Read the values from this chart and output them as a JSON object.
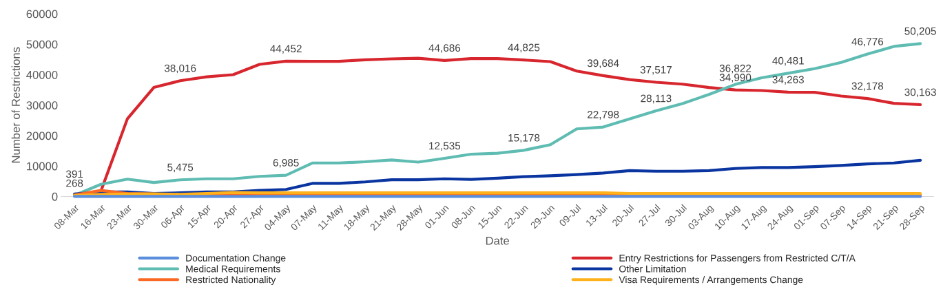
{
  "chart_data": {
    "type": "line",
    "xlabel": "Date",
    "ylabel": "Number of Restrictions",
    "categories": [
      "08-Mar",
      "16-Mar",
      "23-Mar",
      "30-Mar",
      "06-Apr",
      "15-Apr",
      "20-Apr",
      "27-Apr",
      "04-May",
      "07-May",
      "11-May",
      "18-May",
      "21-May",
      "28-May",
      "01-Jun",
      "08-Jun",
      "15-Jun",
      "22-Jun",
      "29-Jun",
      "09-Jul",
      "13-Jul",
      "20-Jul",
      "27-Jul",
      "30-Jul",
      "03-Aug",
      "10-Aug",
      "17-Aug",
      "24-Aug",
      "01-Sep",
      "07-Sep",
      "14-Sep",
      "21-Sep",
      "28-Sep"
    ],
    "ylim": [
      0,
      60000
    ],
    "yticks": [
      0,
      10000,
      20000,
      30000,
      40000,
      50000,
      60000
    ],
    "grid": false,
    "legend": "bottom",
    "marker": "none",
    "line_style": "solid",
    "series": [
      {
        "name": "Documentation Change",
        "color": "#5b8fdd",
        "values": [
          0,
          0,
          0,
          0,
          0,
          0,
          0,
          0,
          0,
          0,
          0,
          0,
          0,
          0,
          0,
          0,
          0,
          0,
          0,
          0,
          0,
          0,
          0,
          0,
          0,
          0,
          0,
          0,
          0,
          0,
          0,
          0,
          0
        ]
      },
      {
        "name": "Entry Restrictions for Passengers from Restricted C/T/A",
        "color": "#d7262e",
        "values": [
          268,
          1800,
          25500,
          35800,
          38016,
          39300,
          40000,
          43400,
          44452,
          44400,
          44400,
          44900,
          45200,
          45400,
          44686,
          45300,
          45300,
          44825,
          44300,
          41200,
          39684,
          38400,
          37517,
          36900,
          35800,
          34990,
          34800,
          34263,
          34200,
          33000,
          32178,
          30600,
          30163
        ],
        "value_labels": [
          "268",
          null,
          null,
          null,
          "38,016",
          null,
          null,
          null,
          "44,452",
          null,
          null,
          null,
          null,
          null,
          "44,686",
          null,
          null,
          "44,825",
          null,
          null,
          "39,684",
          null,
          "37,517",
          null,
          null,
          "34,990",
          null,
          "34,263",
          null,
          null,
          "32,178",
          null,
          "30,163"
        ]
      },
      {
        "name": "Medical Requirements",
        "color": "#5fbcb2",
        "values": [
          391,
          4000,
          5700,
          4600,
          5475,
          5800,
          5800,
          6600,
          6985,
          11000,
          11000,
          11400,
          12000,
          11300,
          12535,
          13900,
          14200,
          15178,
          17000,
          22200,
          22798,
          25500,
          28113,
          30500,
          33500,
          36822,
          39000,
          40481,
          42000,
          44000,
          46776,
          49300,
          50205
        ],
        "value_labels": [
          "391",
          null,
          null,
          null,
          "5,475",
          null,
          null,
          null,
          "6,985",
          null,
          null,
          null,
          null,
          null,
          "12,535",
          null,
          null,
          "15,178",
          null,
          null,
          "22,798",
          null,
          "28,113",
          null,
          null,
          "36,822",
          null,
          "40,481",
          null,
          null,
          "46,776",
          null,
          "50,205"
        ]
      },
      {
        "name": "Other Limitation",
        "color": "#0a35a0",
        "values": [
          800,
          1500,
          1500,
          1000,
          1200,
          1500,
          1500,
          2000,
          2300,
          4300,
          4300,
          4800,
          5500,
          5500,
          5800,
          5600,
          6000,
          6500,
          6800,
          7200,
          7700,
          8500,
          8300,
          8300,
          8500,
          9200,
          9500,
          9500,
          9800,
          10200,
          10700,
          11000,
          11900
        ]
      },
      {
        "name": "Restricted Nationality",
        "color": "#fb6a25",
        "values": [
          500,
          2000,
          1000,
          800,
          500,
          400,
          400,
          400,
          400,
          400,
          400,
          400,
          400,
          400,
          400,
          400,
          400,
          400,
          400,
          400,
          400,
          400,
          400,
          400,
          400,
          400,
          400,
          400,
          400,
          400,
          400,
          400,
          400
        ]
      },
      {
        "name": "Visa Requirements / Arrangements Change",
        "color": "#ffb21c",
        "values": [
          300,
          700,
          800,
          900,
          700,
          1000,
          1300,
          1200,
          1200,
          1200,
          1200,
          1200,
          1200,
          1200,
          1200,
          1200,
          1200,
          1200,
          1200,
          1200,
          1200,
          1000,
          1000,
          1000,
          1000,
          1000,
          1000,
          1000,
          1000,
          1000,
          1000,
          1000,
          1000
        ]
      }
    ]
  }
}
